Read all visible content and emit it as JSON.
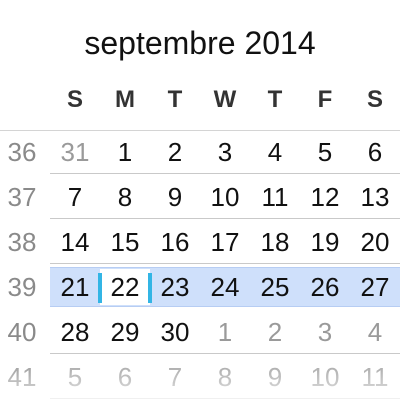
{
  "calendar": {
    "month_title": "septembre 2014",
    "weekdays": [
      "S",
      "M",
      "T",
      "W",
      "T",
      "F",
      "S"
    ],
    "weeks": [
      {
        "week": "36",
        "days": [
          {
            "n": "31",
            "other": true
          },
          {
            "n": "1"
          },
          {
            "n": "2"
          },
          {
            "n": "3"
          },
          {
            "n": "4"
          },
          {
            "n": "5"
          },
          {
            "n": "6"
          }
        ]
      },
      {
        "week": "37",
        "days": [
          {
            "n": "7"
          },
          {
            "n": "8"
          },
          {
            "n": "9"
          },
          {
            "n": "10"
          },
          {
            "n": "11"
          },
          {
            "n": "12"
          },
          {
            "n": "13"
          }
        ]
      },
      {
        "week": "38",
        "days": [
          {
            "n": "14"
          },
          {
            "n": "15"
          },
          {
            "n": "16"
          },
          {
            "n": "17"
          },
          {
            "n": "18"
          },
          {
            "n": "19"
          },
          {
            "n": "20"
          }
        ]
      },
      {
        "week": "39",
        "selected": true,
        "days": [
          {
            "n": "21"
          },
          {
            "n": "22",
            "today": true
          },
          {
            "n": "23"
          },
          {
            "n": "24"
          },
          {
            "n": "25"
          },
          {
            "n": "26"
          },
          {
            "n": "27"
          }
        ]
      },
      {
        "week": "40",
        "days": [
          {
            "n": "28"
          },
          {
            "n": "29"
          },
          {
            "n": "30"
          },
          {
            "n": "1",
            "other": true
          },
          {
            "n": "2",
            "other": true
          },
          {
            "n": "3",
            "other": true
          },
          {
            "n": "4",
            "other": true
          }
        ]
      },
      {
        "week": "41",
        "days": [
          {
            "n": "5",
            "other": true
          },
          {
            "n": "6",
            "other": true
          },
          {
            "n": "7",
            "other": true
          },
          {
            "n": "8",
            "other": true
          },
          {
            "n": "9",
            "other": true
          },
          {
            "n": "10",
            "other": true
          },
          {
            "n": "11",
            "other": true
          }
        ]
      }
    ],
    "colors": {
      "selected_week": "#cfe0fb",
      "today_marker": "#33b5e5",
      "other_month_text": "#9a9a9a",
      "week_number_text": "#8a8a8a"
    }
  }
}
